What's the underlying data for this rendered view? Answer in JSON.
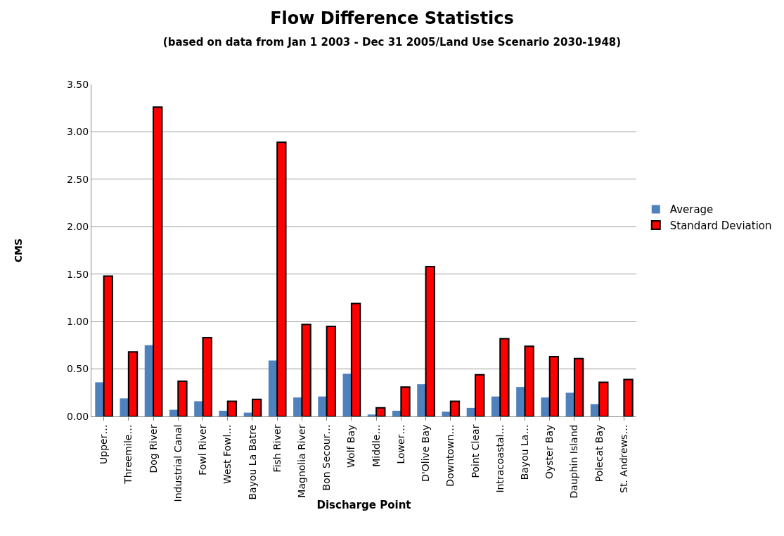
{
  "chart_data": {
    "type": "bar",
    "title": "Flow Difference Statistics",
    "subtitle": "(based on data from Jan 1 2003 - Dec 31 2005/Land Use Scenario 2030-1948)",
    "xlabel": "Discharge Point",
    "ylabel": "CMS",
    "categories": [
      "Upper…",
      "Threemile…",
      "Dog River",
      "Industrial Canal",
      "Fowl River",
      "West Fowl…",
      "Bayou La Batre",
      "Fish River",
      "Magnolia River",
      "Bon Secour…",
      "Wolf Bay",
      "Middle…",
      "Lower…",
      "D'Olive Bay",
      "Downtown…",
      "Point Clear",
      "Intracoastal…",
      "Bayou La…",
      "Oyster Bay",
      "Dauphin Island",
      "Polecat Bay",
      "St. Andrews…"
    ],
    "series": [
      {
        "name": "Average",
        "color": "#4f81bd",
        "values": [
          0.36,
          0.19,
          0.75,
          0.07,
          0.16,
          0.06,
          0.04,
          0.59,
          0.2,
          0.21,
          0.45,
          0.02,
          0.06,
          0.34,
          0.05,
          0.09,
          0.21,
          0.31,
          0.2,
          0.25,
          0.13,
          0.0
        ]
      },
      {
        "name": "Standard Deviation",
        "color": "#ff0000",
        "values": [
          1.48,
          0.68,
          3.26,
          0.37,
          0.83,
          0.16,
          0.18,
          2.89,
          0.97,
          0.95,
          1.19,
          0.09,
          0.31,
          1.58,
          0.16,
          0.44,
          0.82,
          0.74,
          0.63,
          0.61,
          0.36,
          0.39
        ]
      }
    ],
    "ylim": [
      0,
      3.5
    ],
    "yticks": [
      {
        "value": 0,
        "label": "0.00"
      },
      {
        "value": 0.5,
        "label": "0.50"
      },
      {
        "value": 1,
        "label": "1.00"
      },
      {
        "value": 1.5,
        "label": "1.50"
      },
      {
        "value": 2,
        "label": "2.00"
      },
      {
        "value": 2.5,
        "label": "2.50"
      },
      {
        "value": 3,
        "label": "3.00"
      },
      {
        "value": 3.5,
        "label": "3.50"
      }
    ],
    "grid": "y",
    "legend": "right"
  }
}
